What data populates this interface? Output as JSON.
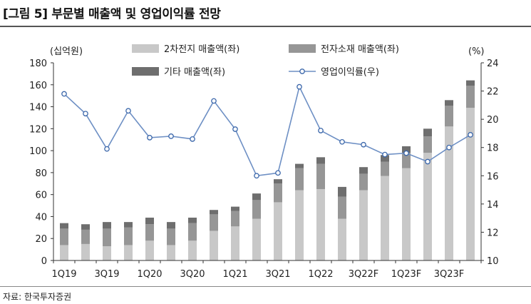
{
  "header": {
    "title": "[그림 5] 부문별 매출액 및 영업이익률 전망",
    "source": "자료: 한국투자증권"
  },
  "chart_data": {
    "type": "bar",
    "stacked": true,
    "left_axis_unit": "(십억원)",
    "right_axis_unit": "(%)",
    "y_left_ticks": [
      "0",
      "20",
      "40",
      "60",
      "80",
      "100",
      "120",
      "140",
      "160",
      "180"
    ],
    "y_right_ticks": [
      "10",
      "12",
      "14",
      "16",
      "18",
      "20",
      "22",
      "24"
    ],
    "ylim_left": [
      0,
      180
    ],
    "ylim_right": [
      10,
      24
    ],
    "x_tick_labels": [
      "1Q19",
      "3Q19",
      "1Q20",
      "3Q20",
      "1Q21",
      "3Q21",
      "1Q22",
      "3Q22F",
      "1Q23F",
      "3Q23F"
    ],
    "legend": [
      "2차전지 매출액(좌)",
      "전자소재 매출액(좌)",
      "기타 매출액(좌)",
      "영업이익률(우)"
    ],
    "categories": [
      "1Q19",
      "2Q19",
      "3Q19",
      "4Q19",
      "1Q20",
      "2Q20",
      "3Q20",
      "4Q20",
      "1Q21",
      "2Q21",
      "3Q21",
      "4Q21",
      "1Q22",
      "2Q22",
      "3Q22F",
      "4Q22F",
      "1Q23F",
      "2Q23F",
      "3Q23F",
      "4Q23F"
    ],
    "series": [
      {
        "name": "2차전지 매출액(좌)",
        "axis": "left",
        "color": "#c8c8c8",
        "values": [
          14,
          15,
          13,
          14,
          18,
          14,
          18,
          27,
          31,
          38,
          53,
          64,
          65,
          38,
          64,
          77,
          84,
          98,
          122,
          139
        ]
      },
      {
        "name": "전자소재 매출액(좌)",
        "axis": "left",
        "color": "#969696",
        "values": [
          15,
          13,
          16,
          16,
          15,
          15,
          16,
          15,
          14,
          17,
          17,
          20,
          23,
          20,
          15,
          13,
          14,
          15,
          19,
          20
        ]
      },
      {
        "name": "기타 매출액(좌)",
        "axis": "left",
        "color": "#6e6e6e",
        "values": [
          5,
          5,
          6,
          5,
          6,
          6,
          5,
          4,
          4,
          6,
          4,
          4,
          6,
          9,
          6,
          6,
          6,
          7,
          5,
          5
        ]
      },
      {
        "name": "영업이익률(우)",
        "axis": "right",
        "type": "line",
        "color": "#6d8fc4",
        "values": [
          21.8,
          20.4,
          17.9,
          20.6,
          18.7,
          18.8,
          18.6,
          21.3,
          19.3,
          16.0,
          16.2,
          22.3,
          19.2,
          18.4,
          18.2,
          17.5,
          17.6,
          17.0,
          18.0,
          18.9
        ]
      }
    ]
  }
}
